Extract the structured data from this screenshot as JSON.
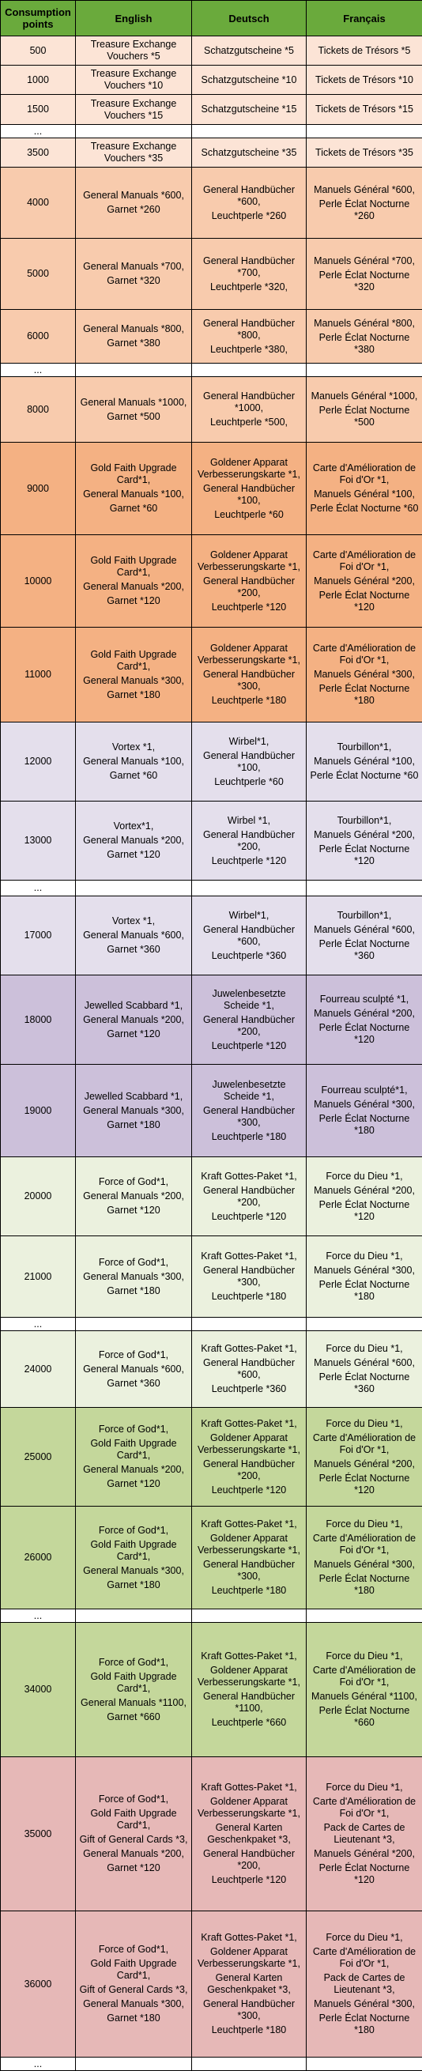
{
  "table": {
    "header": [
      "Consumption points",
      "English",
      "Deutsch",
      "Français"
    ],
    "rows": [
      [
        500,
        [
          "Treasure Exchange Vouchers *5"
        ],
        [
          "Schatzgutscheine *5"
        ],
        [
          "Tickets de Trésors *5"
        ]
      ],
      [
        1000,
        [
          "Treasure Exchange Vouchers *10"
        ],
        [
          "Schatzgutscheine *10"
        ],
        [
          "Tickets de Trésors *10"
        ]
      ],
      [
        1500,
        [
          "Treasure Exchange Vouchers *15"
        ],
        [
          "Schatzgutscheine *15"
        ],
        [
          "Tickets de Trésors *15"
        ]
      ],
      [
        "..."
      ],
      [
        3500,
        [
          "Treasure Exchange Vouchers *35"
        ],
        [
          "Schatzgutscheine *35"
        ],
        [
          "Tickets de Trésors *35"
        ]
      ],
      [
        4000,
        [
          "General Manuals *600,",
          "Garnet *260"
        ],
        [
          "General Handbücher *600,",
          "Leuchtperle *260"
        ],
        [
          "Manuels Général *600,",
          "Perle Éclat Nocturne *260"
        ]
      ],
      [
        5000,
        [
          "General Manuals *700,",
          "Garnet *320"
        ],
        [
          "General Handbücher *700,",
          "Leuchtperle *320,"
        ],
        [
          "Manuels Général *700,",
          "Perle Éclat Nocturne *320"
        ]
      ],
      [
        6000,
        [
          "General Manuals *800,",
          "Garnet *380"
        ],
        [
          "General Handbücher *800,",
          "Leuchtperle *380,"
        ],
        [
          "Manuels Général *800,",
          "Perle Éclat Nocturne *380"
        ]
      ],
      [
        "..."
      ],
      [
        8000,
        [
          "General Manuals *1000,",
          "Garnet *500"
        ],
        [
          "General Handbücher *1000,",
          "Leuchtperle *500,"
        ],
        [
          "Manuels Général *1000,",
          "Perle Éclat Nocturne *500"
        ]
      ],
      [
        9000,
        [
          "Gold Faith Upgrade Card*1,",
          "General Manuals *100,",
          "Garnet *60"
        ],
        [
          "Goldener Apparat Verbesserungskarte *1,",
          "General Handbücher *100,",
          "Leuchtperle *60"
        ],
        [
          "Carte d'Amélioration de Foi d'Or *1,",
          "Manuels Général *100,",
          "Perle Éclat Nocturne *60"
        ]
      ],
      [
        10000,
        [
          "Gold Faith Upgrade Card*1,",
          "General Manuals *200,",
          "Garnet *120"
        ],
        [
          "Goldener Apparat Verbesserungskarte *1,",
          "General Handbücher *200,",
          "Leuchtperle *120"
        ],
        [
          "Carte d'Amélioration de Foi d'Or *1,",
          "Manuels Général *200,",
          "Perle Éclat Nocturne *120"
        ]
      ],
      [
        11000,
        [
          "Gold Faith Upgrade Card*1,",
          "General Manuals *300,",
          "Garnet *180"
        ],
        [
          "Goldener Apparat Verbesserungskarte *1,",
          "General Handbücher *300,",
          "Leuchtperle *180"
        ],
        [
          "Carte d'Amélioration de Foi d'Or *1,",
          "Manuels Général *300,",
          "Perle Éclat Nocturne *180"
        ]
      ],
      [
        12000,
        [
          "Vortex *1,",
          "General Manuals *100,",
          "Garnet *60"
        ],
        [
          "Wirbel*1,",
          "General Handbücher *100,",
          "Leuchtperle *60"
        ],
        [
          "Tourbillon*1,",
          "Manuels Général *100,",
          "Perle Éclat Nocturne *60"
        ]
      ],
      [
        13000,
        [
          "Vortex*1,",
          "General Manuals *200,",
          "Garnet *120"
        ],
        [
          "Wirbel *1,",
          "General Handbücher *200,",
          "Leuchtperle *120"
        ],
        [
          "Tourbillon*1,",
          "Manuels Général *200,",
          "Perle Éclat Nocturne *120"
        ]
      ],
      [
        "..."
      ],
      [
        17000,
        [
          "Vortex *1,",
          "General Manuals *600,",
          "Garnet *360"
        ],
        [
          "Wirbel*1,",
          "General Handbücher *600,",
          "Leuchtperle *360"
        ],
        [
          "Tourbillon*1,",
          "Manuels Général *600,",
          "Perle Éclat Nocturne *360"
        ]
      ],
      [
        18000,
        [
          "Jewelled Scabbard *1,",
          "General Manuals *200,",
          "Garnet *120"
        ],
        [
          "Juwelenbesetzte Scheide *1,",
          "General Handbücher *200,",
          "Leuchtperle *120"
        ],
        [
          "Fourreau sculpté *1,",
          "Manuels Général *200,",
          "Perle Éclat Nocturne *120"
        ]
      ],
      [
        19000,
        [
          "Jewelled Scabbard *1,",
          "General Manuals *300,",
          "Garnet *180"
        ],
        [
          "Juwelenbesetzte Scheide *1,",
          "General Handbücher *300,",
          "Leuchtperle *180"
        ],
        [
          "Fourreau sculpté*1,",
          "Manuels Général *300,",
          "Perle Éclat Nocturne *180"
        ]
      ],
      [
        20000,
        [
          "Force of God*1,",
          "General Manuals *200,",
          "Garnet *120"
        ],
        [
          "Kraft Gottes-Paket *1,",
          "General Handbücher *200,",
          "Leuchtperle *120"
        ],
        [
          "Force du Dieu *1,",
          "Manuels Général *200,",
          "Perle Éclat Nocturne *120"
        ]
      ],
      [
        21000,
        [
          "Force of God*1,",
          "General Manuals *300,",
          "Garnet *180"
        ],
        [
          "Kraft Gottes-Paket *1,",
          "General Handbücher *300,",
          "Leuchtperle *180"
        ],
        [
          "Force du Dieu *1,",
          "Manuels Général *300,",
          "Perle Éclat Nocturne *180"
        ]
      ],
      [
        "..."
      ],
      [
        24000,
        [
          "Force of God*1,",
          "General Manuals *600,",
          "Garnet *360"
        ],
        [
          "Kraft Gottes-Paket *1,",
          "General Handbücher *600,",
          "Leuchtperle *360"
        ],
        [
          "Force du Dieu *1,",
          "Manuels Général *600,",
          "Perle Éclat Nocturne *360"
        ]
      ],
      [
        25000,
        [
          "Force of God*1,",
          "Gold Faith Upgrade Card*1,",
          "General Manuals *200,",
          "Garnet *120"
        ],
        [
          "Kraft Gottes-Paket *1,",
          "Goldener Apparat Verbesserungskarte *1,",
          "General Handbücher *200,",
          "Leuchtperle *120"
        ],
        [
          "Force du Dieu *1,",
          "Carte d'Amélioration de Foi d'Or *1,",
          "Manuels Général *200,",
          "Perle Éclat Nocturne *120"
        ]
      ],
      [
        26000,
        [
          "Force of God*1,",
          "Gold Faith Upgrade Card*1,",
          "General Manuals *300,",
          "Garnet *180"
        ],
        [
          "Kraft Gottes-Paket *1,",
          "Goldener Apparat Verbesserungskarte *1,",
          "General Handbücher *300,",
          "Leuchtperle *180"
        ],
        [
          "Force du Dieu *1,",
          "Carte d'Amélioration de Foi d'Or *1,",
          "Manuels Général *300,",
          "Perle Éclat Nocturne *180"
        ]
      ],
      [
        "..."
      ],
      [
        34000,
        [
          "Force of God*1,",
          "Gold Faith Upgrade Card*1,",
          "General Manuals *1100,",
          "Garnet *660"
        ],
        [
          "Kraft Gottes-Paket *1,",
          "Goldener Apparat Verbesserungskarte *1,",
          "General Handbücher *1100,",
          "Leuchtperle *660"
        ],
        [
          "Force du Dieu *1,",
          "Carte d'Amélioration de Foi d'Or *1,",
          "Manuels Général *1100,",
          "Perle Éclat Nocturne *660"
        ]
      ],
      [
        35000,
        [
          "Force of God*1,",
          "Gold Faith Upgrade Card*1,",
          "Gift of General Cards *3,",
          "General Manuals *200,",
          "Garnet *120"
        ],
        [
          "Kraft Gottes-Paket *1,",
          "Goldener Apparat Verbesserungskarte *1,",
          "General Karten Geschenkpaket *3,",
          "General Handbücher *200,",
          "Leuchtperle *120"
        ],
        [
          "Force du Dieu *1,",
          "Carte d'Amélioration de Foi d'Or *1,",
          "Pack de Cartes de Lieutenant *3,",
          "Manuels Général *200,",
          "Perle Éclat Nocturne *120"
        ]
      ],
      [
        36000,
        [
          "Force of God*1,",
          "Gold Faith Upgrade Card*1,",
          "Gift of General Cards *3,",
          "General Manuals *300,",
          "Garnet *180"
        ],
        [
          "Kraft Gottes-Paket *1,",
          "Goldener Apparat Verbesserungskarte *1,",
          "General Karten Geschenkpaket *3,",
          "General Handbücher *300,",
          "Leuchtperle *180"
        ],
        [
          "Force du Dieu *1,",
          "Carte d'Amélioration de Foi d'Or *1,",
          "Pack de Cartes de Lieutenant *3,",
          "Manuels Général *300,",
          "Perle Éclat Nocturne *180"
        ]
      ],
      [
        "..."
      ]
    ]
  }
}
